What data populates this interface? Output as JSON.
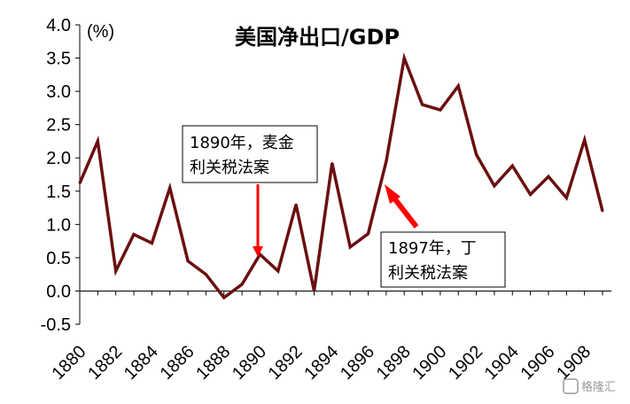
{
  "chart_data": {
    "type": "line",
    "title": "美国净出口/GDP",
    "unit_label": "(%)",
    "ylim": [
      -0.5,
      4.0
    ],
    "yticks": [
      "4.0",
      "3.5",
      "3.0",
      "2.5",
      "2.0",
      "1.5",
      "1.0",
      "0.5",
      "0.0",
      "-0.5"
    ],
    "xticks": [
      "1880",
      "1882",
      "1884",
      "1886",
      "1888",
      "1890",
      "1892",
      "1894",
      "1896",
      "1898",
      "1900",
      "1902",
      "1904",
      "1906",
      "1908"
    ],
    "series": [
      {
        "color": "#6b0f0f",
        "x": [
          1880,
          1881,
          1882,
          1883,
          1884,
          1885,
          1886,
          1887,
          1888,
          1889,
          1890,
          1891,
          1892,
          1893,
          1894,
          1895,
          1896,
          1897,
          1898,
          1899,
          1900,
          1901,
          1902,
          1903,
          1904,
          1905,
          1906,
          1907,
          1908,
          1909
        ],
        "values": [
          1.62,
          2.25,
          0.3,
          0.85,
          0.72,
          1.55,
          0.45,
          0.25,
          -0.1,
          0.1,
          0.55,
          0.3,
          1.3,
          0.0,
          1.92,
          0.66,
          0.86,
          1.95,
          3.5,
          2.8,
          2.72,
          3.08,
          2.05,
          1.58,
          1.88,
          1.45,
          1.72,
          1.4,
          2.27,
          1.2
        ]
      }
    ],
    "grid": false,
    "annotations": [
      {
        "lines": [
          "1890年，麦金",
          "利关税法案"
        ],
        "x": 1890,
        "y": 0.55,
        "arrow_color": "#ff0000"
      },
      {
        "lines": [
          "1897年，丁",
          "利关税法案"
        ],
        "x": 1897,
        "y": 1.62,
        "arrow_color": "#ff0000"
      }
    ]
  },
  "watermark": "格隆汇"
}
